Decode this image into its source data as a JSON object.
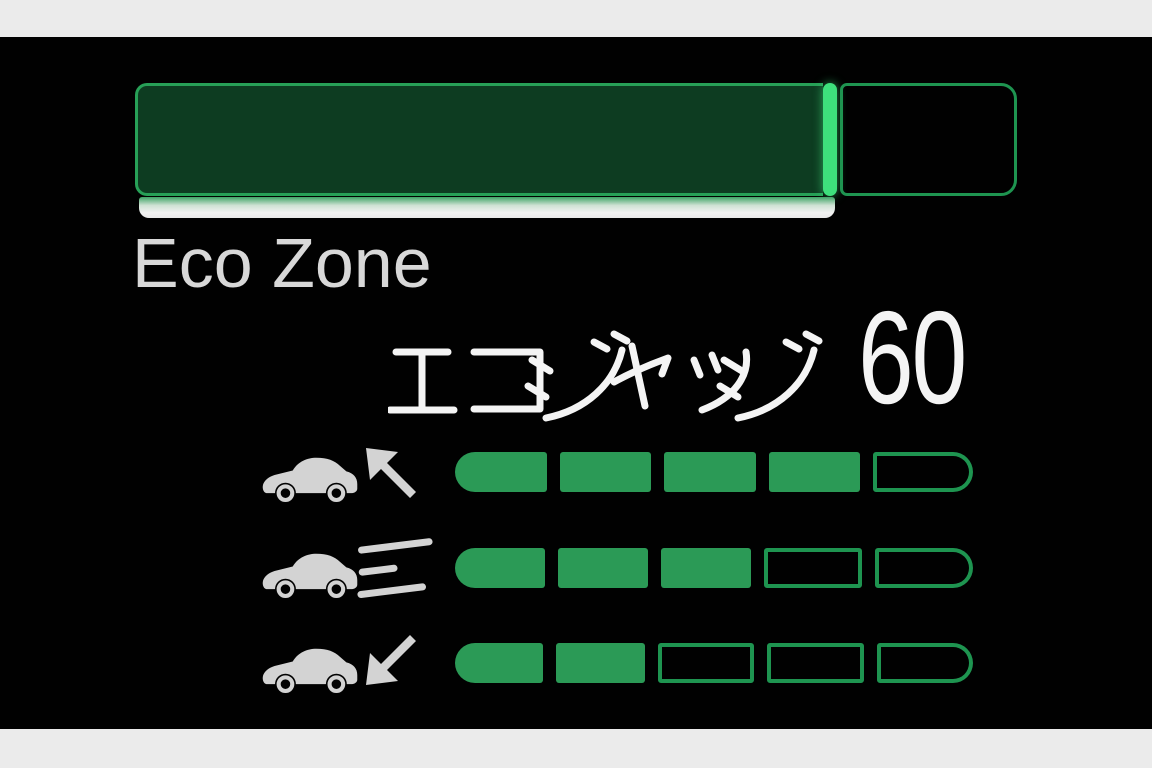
{
  "theme": {
    "background": "#010101",
    "letterbox": "#ebebeb",
    "segment_fill_green": "#2b9a56",
    "segment_outline_green": "#1e9450",
    "bar_fill_dark_green": "#0d3c21",
    "bar_border_green": "#27a057",
    "marker_bright_green": "#3ee07c",
    "icon_gray": "#d3d3d3",
    "label_gray": "#d8d8d8",
    "text_white": "#f4f4f4"
  },
  "eco_zone": {
    "label": "Eco Zone",
    "fill_percent": 78
  },
  "eco_judge": {
    "label": "エコジャッジ",
    "score": "60"
  },
  "eco_meters": {
    "segments_total": 5,
    "rows": [
      {
        "id": "acceleration",
        "icon": "car-accelerating-icon",
        "filled": 4
      },
      {
        "id": "cruising",
        "icon": "car-cruising-icon",
        "filled": 3
      },
      {
        "id": "deceleration",
        "icon": "car-decelerating-icon",
        "filled": 2
      }
    ]
  }
}
